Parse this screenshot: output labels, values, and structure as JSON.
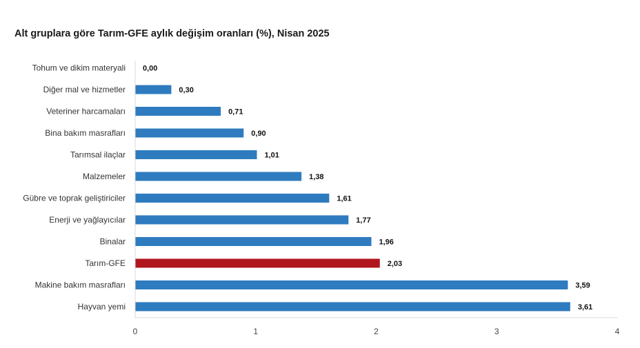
{
  "chart_data": {
    "type": "bar",
    "orientation": "horizontal",
    "title": "Alt gruplara göre Tarım-GFE aylık değişim oranları (%), Nisan 2025",
    "xlabel": "",
    "ylabel": "",
    "xlim": [
      0,
      4
    ],
    "xticks": [
      0,
      1,
      2,
      3,
      4
    ],
    "grid": false,
    "legend": "none",
    "categories": [
      "Tohum ve dikim materyali",
      "Diğer mal ve hizmetler",
      "Veteriner harcamaları",
      "Bina bakım masrafları",
      "Tarımsal ilaçlar",
      "Malzemeler",
      "Gübre ve toprak geliştiriciler",
      "Enerji  ve yağlayıcılar",
      "Binalar",
      "Tarım-GFE",
      "Makine bakım masrafları",
      "Hayvan yemi"
    ],
    "values": [
      0.0,
      0.3,
      0.71,
      0.9,
      1.01,
      1.38,
      1.61,
      1.77,
      1.96,
      2.03,
      3.59,
      3.61
    ],
    "value_labels": [
      "0,00",
      "0,30",
      "0,71",
      "0,90",
      "1,01",
      "1,38",
      "1,61",
      "1,77",
      "1,96",
      "2,03",
      "3,59",
      "3,61"
    ],
    "highlight_category": "Tarım-GFE",
    "colors": {
      "bar": "#2E7BBF",
      "highlight": "#B0161E",
      "axis": "#D9D9D9"
    }
  }
}
